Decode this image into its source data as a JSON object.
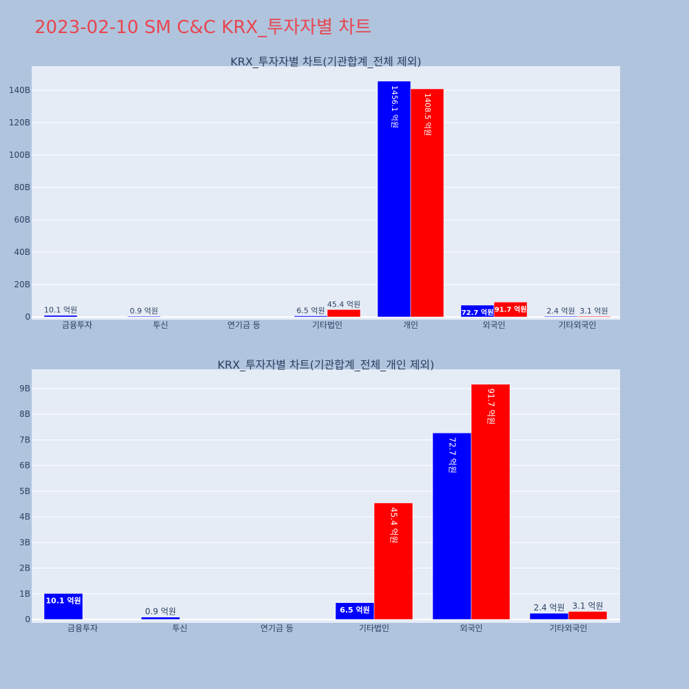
{
  "title": "2023-02-10 SM C&C KRX_투자자별 차트",
  "colors": {
    "background": "#b0c4de",
    "plot_background": "#e5ecf6",
    "title": "#e8464f",
    "text": "#2a3f5f",
    "series_buy": "#0000ff",
    "series_sell": "#ff0000",
    "grid": "#ffffff"
  },
  "chart_data": [
    {
      "type": "bar",
      "title": "KRX_투자자별 차트(기관합계_전체 제외)",
      "categories": [
        "금융투자",
        "투신",
        "연기금 등",
        "기타법인",
        "개인",
        "외국인",
        "기타외국인"
      ],
      "yticks": [
        "0",
        "20B",
        "40B",
        "60B",
        "80B",
        "100B",
        "120B",
        "140B"
      ],
      "ylim": [
        0,
        150
      ],
      "yunit": "B",
      "series": [
        {
          "color": "blue",
          "values": [
            1.01,
            0.09,
            null,
            0.65,
            145.61,
            7.27,
            0.24
          ],
          "labels": [
            "10.1 억원",
            "0.9 억원",
            "",
            "6.5 억원",
            "1456.1 억원",
            "72.7 억원",
            "2.4 억원"
          ]
        },
        {
          "color": "red",
          "values": [
            null,
            null,
            null,
            4.54,
            140.85,
            9.17,
            0.31
          ],
          "labels": [
            "",
            "",
            "",
            "45.4 억원",
            "1408.5 억원",
            "91.7 억원",
            "3.1 억원"
          ]
        }
      ]
    },
    {
      "type": "bar",
      "title": "KRX_투자자별 차트(기관합계_전체_개인 제외)",
      "categories": [
        "금융투자",
        "투신",
        "연기금 등",
        "기타법인",
        "외국인",
        "기타외국인"
      ],
      "yticks": [
        "0",
        "1B",
        "2B",
        "3B",
        "4B",
        "5B",
        "6B",
        "7B",
        "8B",
        "9B"
      ],
      "ylim": [
        0,
        9.5
      ],
      "yunit": "B",
      "series": [
        {
          "color": "blue",
          "values": [
            1.01,
            0.09,
            null,
            0.65,
            7.27,
            0.24
          ],
          "labels": [
            "10.1 억원",
            "0.9 억원",
            "",
            "6.5 억원",
            "72.7 억원",
            "2.4 억원"
          ]
        },
        {
          "color": "red",
          "values": [
            null,
            null,
            null,
            4.54,
            9.17,
            0.31
          ],
          "labels": [
            "",
            "",
            "",
            "45.4 억원",
            "91.7 억원",
            "3.1 억원"
          ]
        }
      ]
    }
  ]
}
